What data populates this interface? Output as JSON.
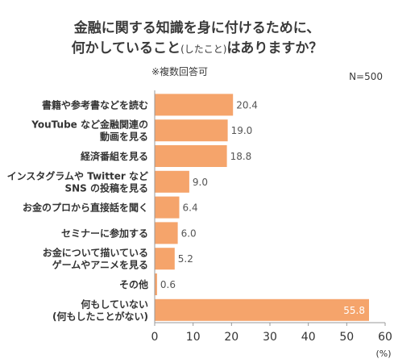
{
  "title": {
    "line1": "金融に関する知識を身に付けるために、",
    "line2_pre": "何かしていること",
    "line2_small": "(したこと)",
    "line2_post": "はありますか？"
  },
  "note": "※複数回答可",
  "sample": "N=500",
  "colors": {
    "bar": "#f5a46b",
    "value_dark": "#555555",
    "value_light": "#ffffff",
    "axis": "#999999"
  },
  "chart_data": {
    "type": "bar",
    "orientation": "horizontal",
    "categories": [
      [
        "書籍や参考書などを読む"
      ],
      [
        "YouTube など金融関連の",
        "動画を見る"
      ],
      [
        "経済番組を見る"
      ],
      [
        "インスタグラムや Twitter など",
        "SNS の投稿を見る"
      ],
      [
        "お金のプロから直接話を聞く"
      ],
      [
        "セミナーに参加する"
      ],
      [
        "お金について描いている",
        "ゲームやアニメを見る"
      ],
      [
        "その他"
      ],
      [
        "何もしていない",
        "(何もしたことがない)"
      ]
    ],
    "values": [
      20.4,
      19.0,
      18.8,
      9.0,
      6.4,
      6.0,
      5.2,
      0.6,
      55.8
    ],
    "value_labels": [
      "20.4",
      "19.0",
      "18.8",
      "9.0",
      "6.4",
      "6.0",
      "5.2",
      "0.6",
      "55.8"
    ],
    "xlim": [
      0,
      60
    ],
    "xticks": [
      0,
      10,
      20,
      30,
      40,
      50,
      60
    ],
    "xunit": "(%)",
    "grid": false
  }
}
